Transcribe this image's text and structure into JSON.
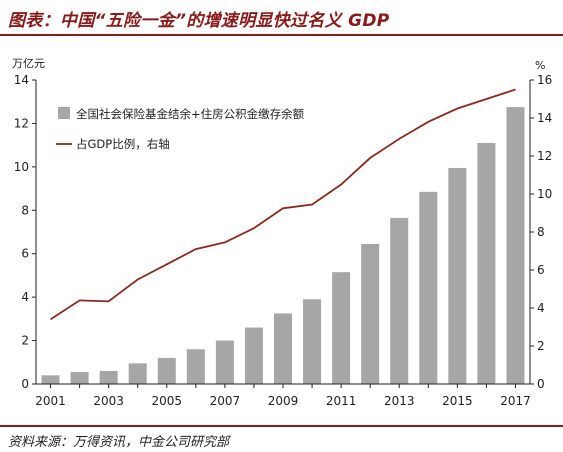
{
  "header": {
    "title": "图表：中国“五险一金”的增速明显快过名义 GDP"
  },
  "footer": {
    "source": "资料来源：万得资讯，中金公司研究部"
  },
  "colors": {
    "bar": "#a6a6a6",
    "line": "#8b2a1f",
    "title": "#8a1a1a"
  },
  "chart_data": {
    "type": "bar+line",
    "x": [
      2001,
      2002,
      2003,
      2004,
      2005,
      2006,
      2007,
      2008,
      2009,
      2010,
      2011,
      2012,
      2013,
      2014,
      2015,
      2016,
      2017
    ],
    "x_tick_labels": [
      "2001",
      "2003",
      "2005",
      "2007",
      "2009",
      "2011",
      "2013",
      "2015",
      "2017"
    ],
    "y_left": {
      "label": "万亿元",
      "range": [
        0,
        14
      ],
      "ticks": [
        0,
        2,
        4,
        6,
        8,
        10,
        12,
        14
      ]
    },
    "y_right": {
      "label": "%",
      "range": [
        0,
        16
      ],
      "ticks": [
        0,
        2,
        4,
        6,
        8,
        10,
        12,
        14,
        16
      ]
    },
    "series": [
      {
        "name": "全国社会保险基金结余+住房公积金缴存余额",
        "type": "bar",
        "axis": "left",
        "values": [
          0.4,
          0.55,
          0.6,
          0.95,
          1.2,
          1.6,
          2.0,
          2.6,
          3.25,
          3.9,
          5.15,
          6.45,
          7.65,
          8.85,
          9.95,
          11.1,
          12.75
        ]
      },
      {
        "name": "占GDP比例，右轴",
        "type": "line",
        "axis": "right",
        "values": [
          3.4,
          4.4,
          4.35,
          5.5,
          6.3,
          7.1,
          7.45,
          8.2,
          9.25,
          9.45,
          10.5,
          11.9,
          12.9,
          13.8,
          14.5,
          15.0,
          15.5
        ]
      }
    ],
    "grid": false,
    "legend": "top-left"
  }
}
